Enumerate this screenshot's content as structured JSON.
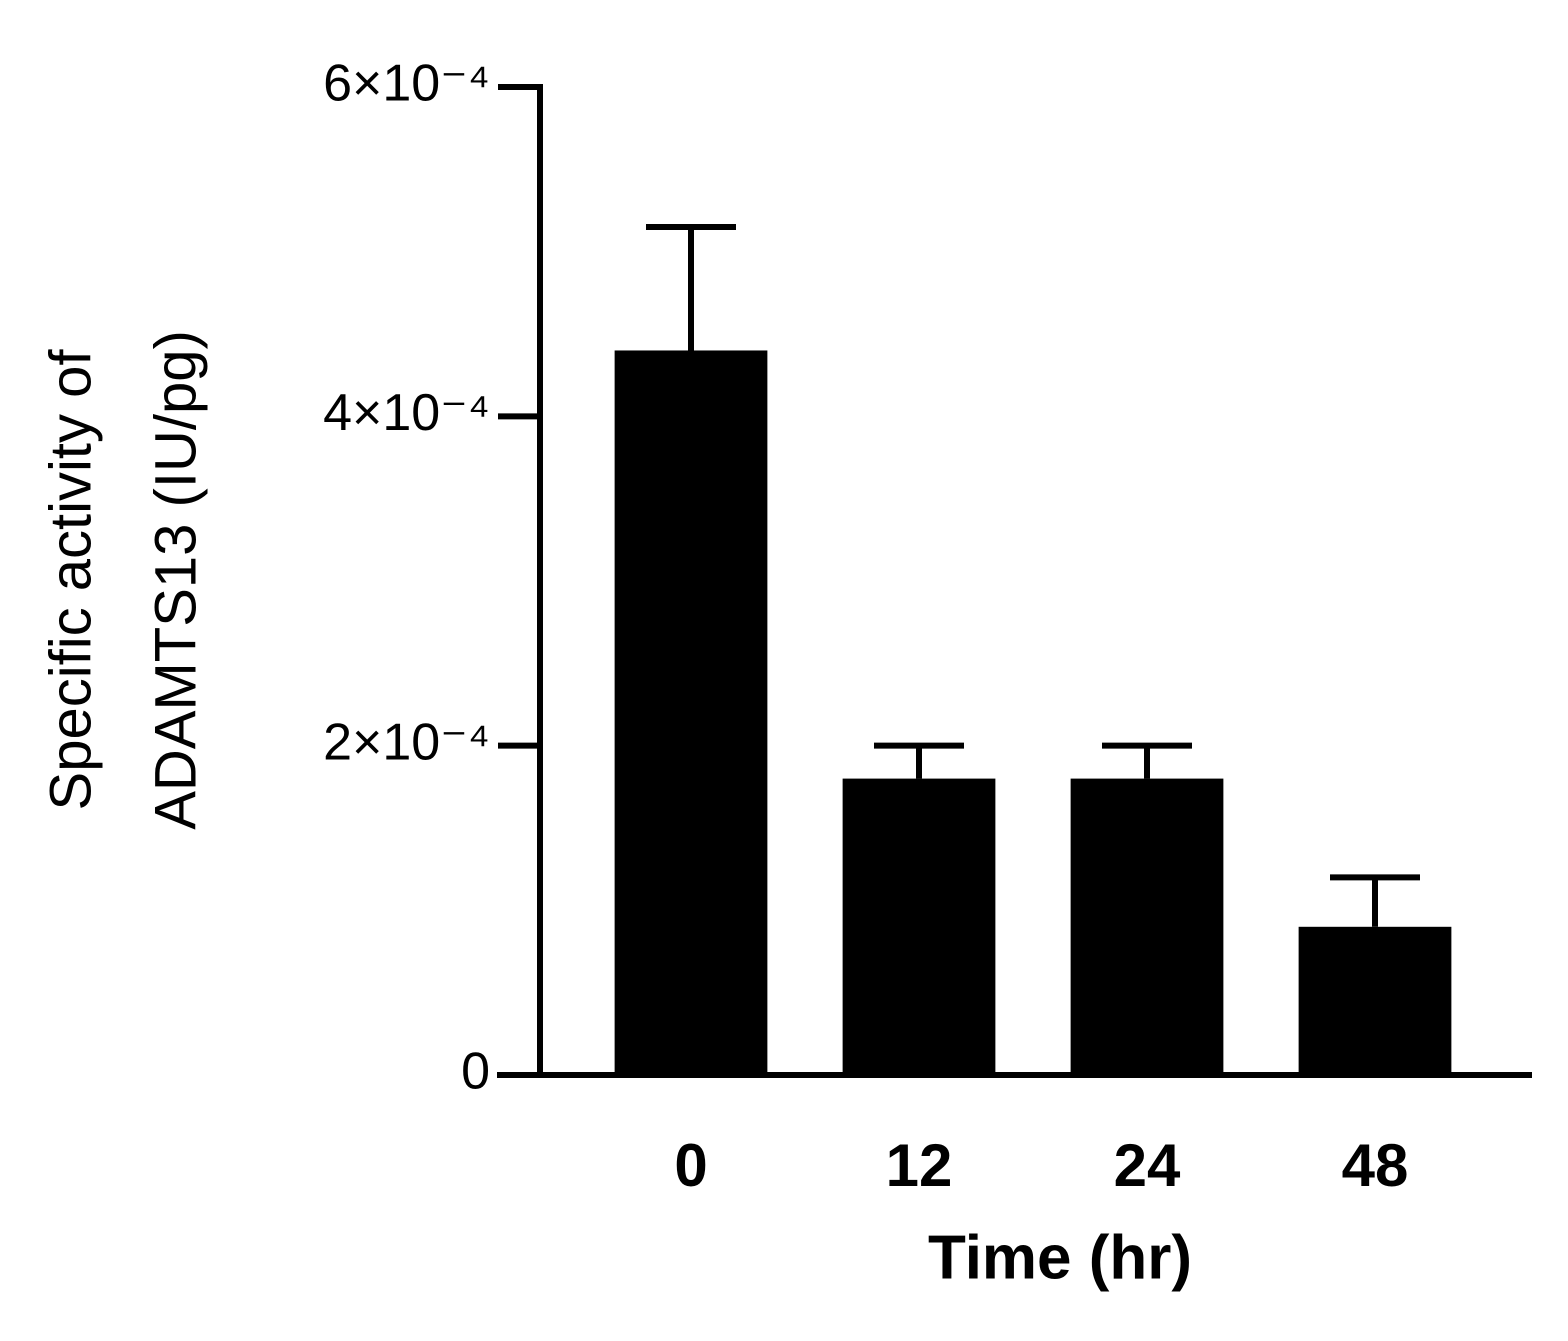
{
  "chart_data": {
    "type": "bar",
    "ylabel": [
      "Specific activity of",
      "ADAMTS13 (IU/pg)"
    ],
    "xlabel": "Time (hr)",
    "categories": [
      "0",
      "12",
      "24",
      "48"
    ],
    "values": [
      0.00044,
      0.00018,
      0.00018,
      9e-05
    ],
    "errors": [
      7.5e-05,
      2e-05,
      2e-05,
      3e-05
    ],
    "color": "#000000",
    "ylim": [
      0,
      0.0006
    ],
    "yticks": [
      0,
      {
        "value": 0.0002,
        "label": "2×10⁻⁴"
      },
      {
        "value": 0.0004,
        "label": "4×10⁻⁴"
      },
      {
        "value": 0.0006,
        "label": "6×10⁻⁴"
      }
    ],
    "grid": false
  }
}
